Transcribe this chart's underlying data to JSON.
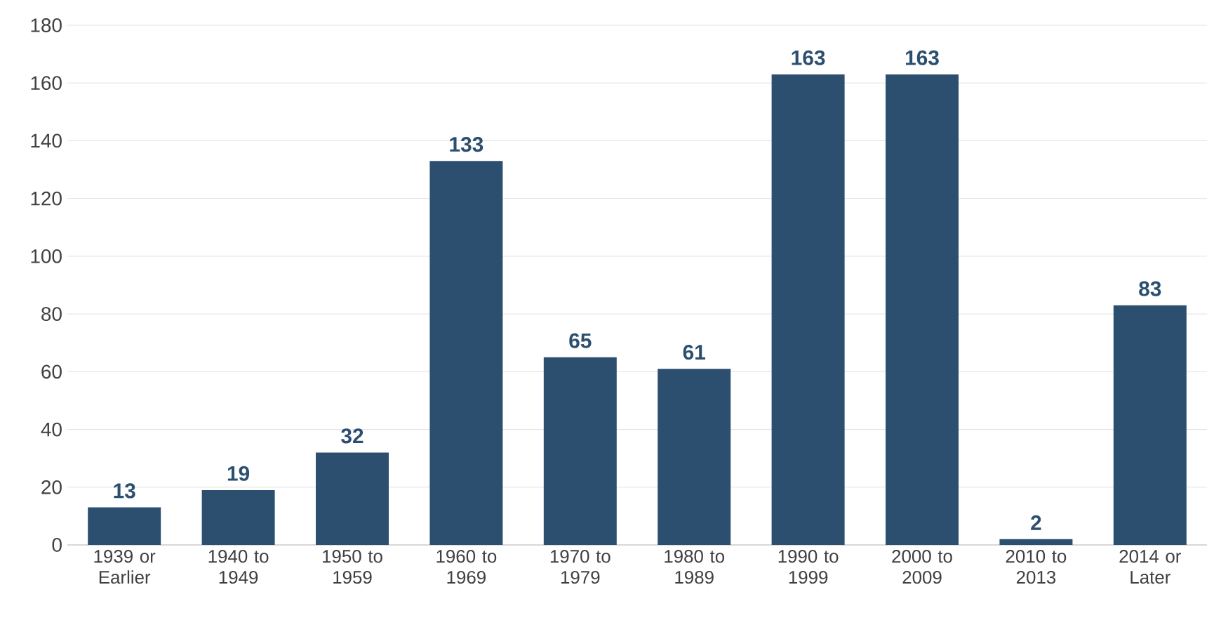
{
  "chart_data": {
    "type": "bar",
    "categories": [
      "1939 or Earlier",
      "1940 to 1949",
      "1950 to 1959",
      "1960 to 1969",
      "1970 to 1979",
      "1980 to 1989",
      "1990 to 1999",
      "2000 to 2009",
      "2010 to 2013",
      "2014 or Later"
    ],
    "values": [
      13,
      19,
      32,
      133,
      65,
      61,
      163,
      163,
      2,
      83
    ],
    "color": "#2c4f70",
    "ylim": [
      0,
      180
    ],
    "yticks": [
      0,
      20,
      40,
      60,
      80,
      100,
      120,
      140,
      160,
      180
    ],
    "grid": "y",
    "data_labels": true
  }
}
